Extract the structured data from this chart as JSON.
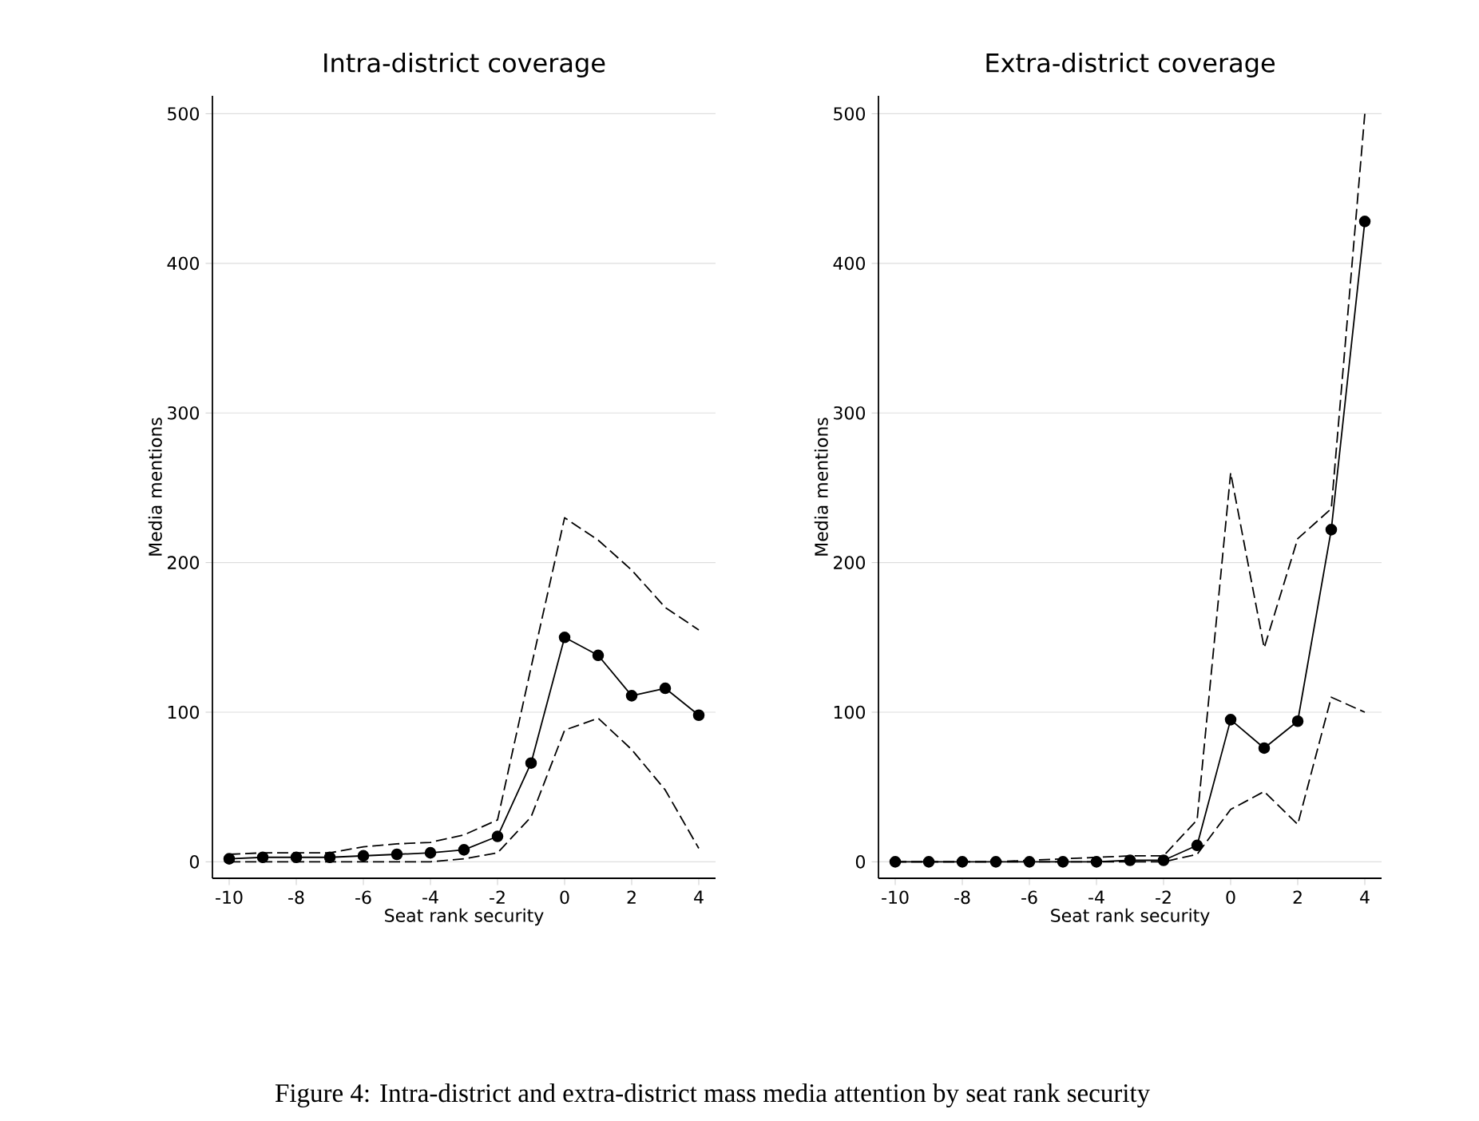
{
  "chart_data": [
    {
      "type": "line",
      "title": "Intra-district coverage",
      "xlabel": "Seat rank security",
      "ylabel": "Media mentions",
      "x": [
        -10,
        -9,
        -8,
        -7,
        -6,
        -5,
        -4,
        -3,
        -2,
        -1,
        0,
        1,
        2,
        3,
        4
      ],
      "series": [
        {
          "color": "#000000",
          "line_style": "dashed",
          "marker": "none",
          "values": [
            5,
            6,
            6,
            6,
            10,
            12,
            13,
            18,
            28,
            130,
            230,
            215,
            195,
            170,
            155
          ]
        },
        {
          "color": "#000000",
          "line_style": "solid",
          "marker": "circle",
          "values": [
            2,
            3,
            3,
            3,
            4,
            5,
            6,
            8,
            17,
            66,
            150,
            138,
            111,
            116,
            98
          ]
        },
        {
          "color": "#000000",
          "line_style": "dashed",
          "marker": "none",
          "values": [
            0,
            0,
            0,
            0,
            0,
            0,
            0,
            2,
            6,
            30,
            88,
            96,
            75,
            48,
            9
          ]
        }
      ],
      "xlim": [
        -10.5,
        4.5
      ],
      "ylim": [
        -11,
        512
      ],
      "xticks": [
        -10,
        -8,
        -6,
        -4,
        -2,
        0,
        2,
        4
      ],
      "yticks": [
        0,
        100,
        200,
        300,
        400,
        500
      ],
      "grid": "y"
    },
    {
      "type": "line",
      "title": "Extra-district coverage",
      "xlabel": "Seat rank security",
      "ylabel": "Media mentions",
      "x": [
        -10,
        -9,
        -8,
        -7,
        -6,
        -5,
        -4,
        -3,
        -2,
        -1,
        0,
        1,
        2,
        3,
        4
      ],
      "series": [
        {
          "color": "#000000",
          "line_style": "dashed",
          "marker": "none",
          "values": [
            0,
            0,
            0,
            0,
            1,
            2,
            3,
            4,
            4,
            28,
            260,
            143,
            216,
            236,
            500
          ]
        },
        {
          "color": "#000000",
          "line_style": "solid",
          "marker": "circle",
          "values": [
            0,
            0,
            0,
            0,
            0,
            0,
            0,
            1,
            1,
            11,
            95,
            76,
            94,
            222,
            428
          ]
        },
        {
          "color": "#000000",
          "line_style": "dashed",
          "marker": "none",
          "values": [
            0,
            0,
            0,
            0,
            0,
            0,
            0,
            0,
            0,
            5,
            35,
            47,
            25,
            110,
            100
          ]
        }
      ],
      "xlim": [
        -10.5,
        4.5
      ],
      "ylim": [
        -11,
        512
      ],
      "xticks": [
        -10,
        -8,
        -6,
        -4,
        -2,
        0,
        2,
        4
      ],
      "yticks": [
        0,
        100,
        200,
        300,
        400,
        500
      ],
      "grid": "y",
      "annotations": [
        "Figure 4: Intra-district and extra-district mass media attention by seat rank security"
      ]
    }
  ]
}
